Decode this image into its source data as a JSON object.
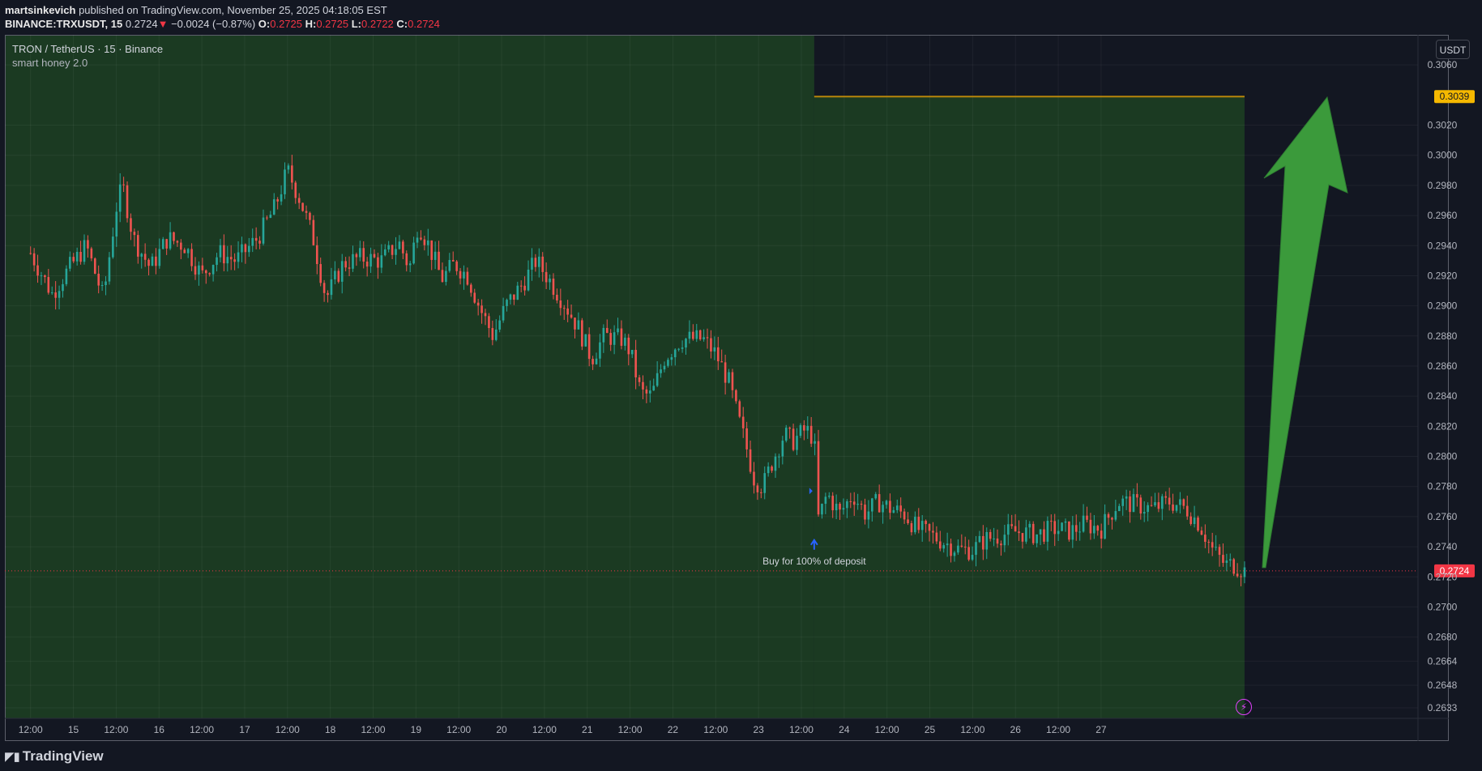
{
  "header": {
    "author": "martsinkevich",
    "published": "published on TradingView.com, November 25, 2025 04:18:05 EST",
    "symbol_line": "BINANCE:TRXUSDT, 15",
    "last": "0.2724",
    "change": "−0.0024 (−0.87%)",
    "o_label": "O:",
    "o": "0.2725",
    "h_label": "H:",
    "h": "0.2725",
    "l_label": "L:",
    "l": "0.2722",
    "c_label": "C:",
    "c": "0.2724"
  },
  "legend": {
    "symbol": "TRON / TetherUS · 15 · Binance",
    "indicator": "smart honey 2.0"
  },
  "currency_button": "USDT",
  "footer": {
    "brand": "TradingView"
  },
  "colors": {
    "background": "#131722",
    "zone_green": "#1b3a22",
    "candle_up": "#26a69a",
    "candle_down": "#ef5350",
    "target_line": "#b8860b",
    "target_badge": "#f5b800",
    "price_badge": "#f23645",
    "arrow": "#3b9a3b",
    "signal": "#2962ff"
  },
  "chart_data": {
    "type": "candlestick",
    "y_axis_ticks": [
      "0.3060",
      "0.3020",
      "0.3000",
      "0.2980",
      "0.2960",
      "0.2940",
      "0.2920",
      "0.2900",
      "0.2880",
      "0.2860",
      "0.2840",
      "0.2820",
      "0.2800",
      "0.2780",
      "0.2760",
      "0.2740",
      "0.2720",
      "0.2700",
      "0.2680",
      "0.2664",
      "0.2648",
      "0.2633"
    ],
    "x_axis_ticks": [
      "12:00",
      "15",
      "12:00",
      "16",
      "12:00",
      "17",
      "12:00",
      "18",
      "12:00",
      "19",
      "12:00",
      "20",
      "12:00",
      "21",
      "12:00",
      "22",
      "12:00",
      "23",
      "12:00",
      "24",
      "12:00",
      "25",
      "12:00",
      "26",
      "12:00",
      "27"
    ],
    "close_path": [
      [
        0,
        0.2935
      ],
      [
        0.5,
        0.2908
      ],
      [
        0.9,
        0.2925
      ],
      [
        1.3,
        0.294
      ],
      [
        1.7,
        0.2905
      ],
      [
        2.0,
        0.2965
      ],
      [
        2.15,
        0.298
      ],
      [
        2.4,
        0.2945
      ],
      [
        2.8,
        0.2925
      ],
      [
        3.2,
        0.2945
      ],
      [
        3.6,
        0.294
      ],
      [
        4.0,
        0.292
      ],
      [
        4.4,
        0.2935
      ],
      [
        4.8,
        0.293
      ],
      [
        5.3,
        0.2945
      ],
      [
        5.7,
        0.2965
      ],
      [
        6.0,
        0.299
      ],
      [
        6.3,
        0.297
      ],
      [
        6.6,
        0.2945
      ],
      [
        6.9,
        0.2905
      ],
      [
        7.3,
        0.2928
      ],
      [
        7.7,
        0.2932
      ],
      [
        8.2,
        0.293
      ],
      [
        8.6,
        0.2942
      ],
      [
        8.85,
        0.2925
      ],
      [
        9.05,
        0.2955
      ],
      [
        9.3,
        0.294
      ],
      [
        9.6,
        0.2918
      ],
      [
        9.9,
        0.2928
      ],
      [
        10.2,
        0.292
      ],
      [
        10.5,
        0.2898
      ],
      [
        10.8,
        0.288
      ],
      [
        11.1,
        0.29
      ],
      [
        11.5,
        0.2915
      ],
      [
        11.8,
        0.293
      ],
      [
        12.1,
        0.2918
      ],
      [
        12.5,
        0.29
      ],
      [
        12.8,
        0.2885
      ],
      [
        13.1,
        0.2865
      ],
      [
        13.4,
        0.288
      ],
      [
        13.8,
        0.2878
      ],
      [
        14.0,
        0.287
      ],
      [
        14.25,
        0.2842
      ],
      [
        14.5,
        0.284
      ],
      [
        14.8,
        0.2865
      ],
      [
        15.2,
        0.2878
      ],
      [
        15.7,
        0.2878
      ],
      [
        16.0,
        0.2868
      ],
      [
        16.3,
        0.285
      ],
      [
        16.5,
        0.2828
      ],
      [
        16.7,
        0.2808
      ],
      [
        16.9,
        0.2785
      ],
      [
        17.1,
        0.278
      ],
      [
        17.3,
        0.2795
      ],
      [
        17.6,
        0.2815
      ],
      [
        17.8,
        0.281
      ],
      [
        18.1,
        0.2818
      ],
      [
        18.3,
        0.2812
      ],
      [
        18.4,
        0.2758
      ],
      [
        18.6,
        0.2775
      ],
      [
        18.9,
        0.2762
      ],
      [
        19.2,
        0.2775
      ],
      [
        19.5,
        0.2762
      ],
      [
        19.8,
        0.277
      ],
      [
        20.1,
        0.2765
      ],
      [
        20.4,
        0.2762
      ],
      [
        20.7,
        0.2752
      ],
      [
        21.0,
        0.2748
      ],
      [
        21.4,
        0.2742
      ],
      [
        21.7,
        0.2738
      ],
      [
        22.0,
        0.2738
      ],
      [
        22.3,
        0.2745
      ],
      [
        22.7,
        0.2748
      ],
      [
        23.0,
        0.275
      ],
      [
        23.5,
        0.2748
      ],
      [
        23.9,
        0.2752
      ],
      [
        24.3,
        0.275
      ],
      [
        24.6,
        0.2755
      ],
      [
        25.0,
        0.2752
      ],
      [
        25.4,
        0.277
      ],
      [
        25.8,
        0.2768
      ],
      [
        26.2,
        0.2765
      ],
      [
        26.6,
        0.277
      ],
      [
        27.0,
        0.2765
      ],
      [
        27.3,
        0.2755
      ],
      [
        27.6,
        0.2738
      ],
      [
        27.9,
        0.2728
      ],
      [
        28.1,
        0.2728
      ],
      [
        28.35,
        0.2724
      ]
    ],
    "target_level": {
      "value": 0.3039,
      "label": "0.3039"
    },
    "current_price": {
      "value": 0.2724,
      "label": "0.2724"
    },
    "signal": {
      "x": 18.3,
      "y": 0.2752,
      "label": "Buy for 100% of deposit"
    },
    "ylim": [
      0.2626,
      0.308
    ],
    "xlim": [
      -0.6,
      32.4
    ]
  }
}
